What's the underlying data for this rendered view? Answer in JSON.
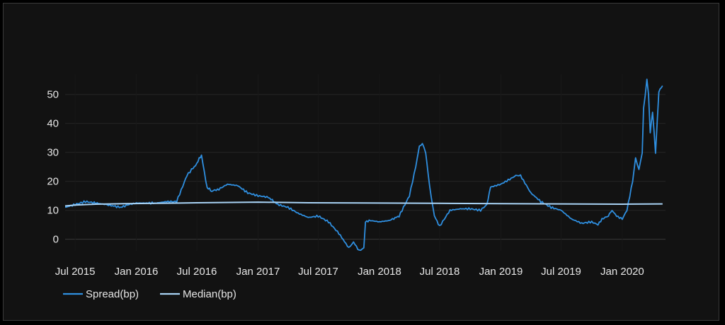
{
  "colors": {
    "background": "#121212",
    "spread": "#2f8fe0",
    "median": "#a9d3f5",
    "grid": "#262626",
    "text": "#e6e6e6"
  },
  "legend": {
    "spread_label": "Spread(bp)",
    "median_label": "Median(bp)"
  },
  "chart_data": {
    "type": "line",
    "title": "",
    "xlabel": "",
    "ylabel": "",
    "ylim": [
      -4,
      57
    ],
    "xlim": [
      "2015-06-01",
      "2020-05-10"
    ],
    "yticks": [
      0,
      10,
      20,
      30,
      40,
      50
    ],
    "xticks": [
      {
        "date": "2015-07-01",
        "label": "Jul 2015"
      },
      {
        "date": "2016-01-01",
        "label": "Jan 2016"
      },
      {
        "date": "2016-07-01",
        "label": "Jul 2016"
      },
      {
        "date": "2017-01-01",
        "label": "Jan 2017"
      },
      {
        "date": "2017-07-01",
        "label": "Jul 2017"
      },
      {
        "date": "2018-01-01",
        "label": "Jan 2018"
      },
      {
        "date": "2018-07-01",
        "label": "Jul 2018"
      },
      {
        "date": "2019-01-01",
        "label": "Jan 2019"
      },
      {
        "date": "2019-07-01",
        "label": "Jul 2019"
      },
      {
        "date": "2020-01-01",
        "label": "Jan 2020"
      }
    ],
    "grid": true,
    "legend_position": "bottom-left",
    "series": [
      {
        "name": "Spread(bp)",
        "x": [
          "2015-06-01",
          "2015-07-01",
          "2015-08-01",
          "2015-09-01",
          "2015-10-01",
          "2015-11-15",
          "2015-12-10",
          "2016-01-01",
          "2016-02-01",
          "2016-03-01",
          "2016-04-01",
          "2016-05-01",
          "2016-05-15",
          "2016-06-01",
          "2016-06-15",
          "2016-07-01",
          "2016-07-08",
          "2016-07-15",
          "2016-08-01",
          "2016-08-08",
          "2016-08-15",
          "2016-08-20",
          "2016-09-01",
          "2016-10-01",
          "2016-11-01",
          "2016-12-01",
          "2017-01-01",
          "2017-02-01",
          "2017-03-01",
          "2017-04-01",
          "2017-05-01",
          "2017-06-01",
          "2017-07-01",
          "2017-08-01",
          "2017-09-01",
          "2017-10-01",
          "2017-10-15",
          "2017-11-01",
          "2017-11-15",
          "2017-11-20",
          "2017-12-01",
          "2018-01-01",
          "2018-02-01",
          "2018-03-01",
          "2018-04-01",
          "2018-04-20",
          "2018-05-01",
          "2018-05-10",
          "2018-05-20",
          "2018-06-01",
          "2018-06-15",
          "2018-07-01",
          "2018-07-15",
          "2018-08-01",
          "2018-09-01",
          "2018-10-01",
          "2018-11-01",
          "2018-11-20",
          "2018-12-01",
          "2019-01-01",
          "2019-02-01",
          "2019-02-15",
          "2019-03-01",
          "2019-04-01",
          "2019-05-01",
          "2019-06-01",
          "2019-07-01",
          "2019-08-01",
          "2019-09-01",
          "2019-10-01",
          "2019-10-20",
          "2019-11-01",
          "2019-11-20",
          "2019-12-01",
          "2019-12-15",
          "2020-01-01",
          "2020-01-15",
          "2020-02-01",
          "2020-02-10",
          "2020-02-20",
          "2020-03-01",
          "2020-03-05",
          "2020-03-10",
          "2020-03-15",
          "2020-03-20",
          "2020-03-25",
          "2020-04-01",
          "2020-04-10",
          "2020-04-20",
          "2020-05-01"
        ],
        "y": [
          11,
          12,
          13,
          12.5,
          12,
          11,
          12,
          12.5,
          12.5,
          12.5,
          13,
          13,
          17,
          22,
          24,
          26,
          28,
          29,
          17.5,
          17.5,
          16.5,
          17,
          17,
          19,
          18.5,
          16,
          15,
          14.5,
          12,
          11,
          9,
          7.5,
          8,
          6,
          2,
          -3,
          -1,
          -4,
          -3,
          6,
          6.5,
          6,
          6.5,
          8,
          15,
          25,
          32,
          33,
          30,
          18,
          8,
          4.5,
          7,
          10,
          10.5,
          10.5,
          10,
          12,
          18,
          19,
          21,
          22,
          22,
          16,
          13,
          11,
          10,
          7,
          5.5,
          6,
          5,
          7,
          8,
          10,
          8,
          7,
          10,
          20,
          28,
          24,
          30,
          45,
          50,
          55,
          50,
          37,
          44,
          30,
          51,
          53
        ]
      },
      {
        "name": "Median(bp)",
        "x": [
          "2015-06-01",
          "2015-07-01",
          "2015-09-01",
          "2015-12-01",
          "2016-03-01",
          "2016-07-01",
          "2017-01-01",
          "2017-06-01",
          "2018-01-01",
          "2018-07-01",
          "2019-01-01",
          "2019-07-01",
          "2020-01-01",
          "2020-05-01"
        ],
        "y": [
          11.5,
          11.8,
          12.1,
          12.3,
          12.4,
          12.6,
          12.8,
          12.6,
          12.5,
          12.4,
          12.3,
          12.2,
          12.1,
          12.2
        ]
      }
    ]
  }
}
